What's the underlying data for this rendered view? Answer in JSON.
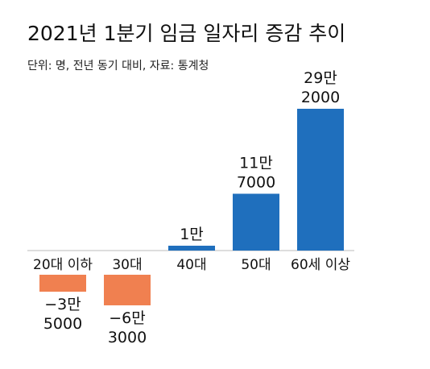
{
  "chart_data": {
    "type": "bar",
    "title": "2021년 1분기 임금 일자리 증감 추이",
    "subtitle": "단위: 명, 전년 동기 대비, 자료: 통계청",
    "categories": [
      "20대 이하",
      "30대",
      "40대",
      "50대",
      "60세 이상"
    ],
    "values": [
      -35000,
      -63000,
      10000,
      117000,
      292000
    ],
    "value_labels": [
      [
        "−3만",
        "5000"
      ],
      [
        "−6만",
        "3000"
      ],
      [
        "1만"
      ],
      [
        "11만",
        "7000"
      ],
      [
        "29만",
        "2000"
      ]
    ],
    "xlabel": "",
    "ylabel": "",
    "ylim": [
      -63000,
      292000
    ],
    "grid": false,
    "colors": {
      "positive": "#1f6fbd",
      "negative": "#f08050",
      "baseline": "#bbbbbb"
    }
  }
}
